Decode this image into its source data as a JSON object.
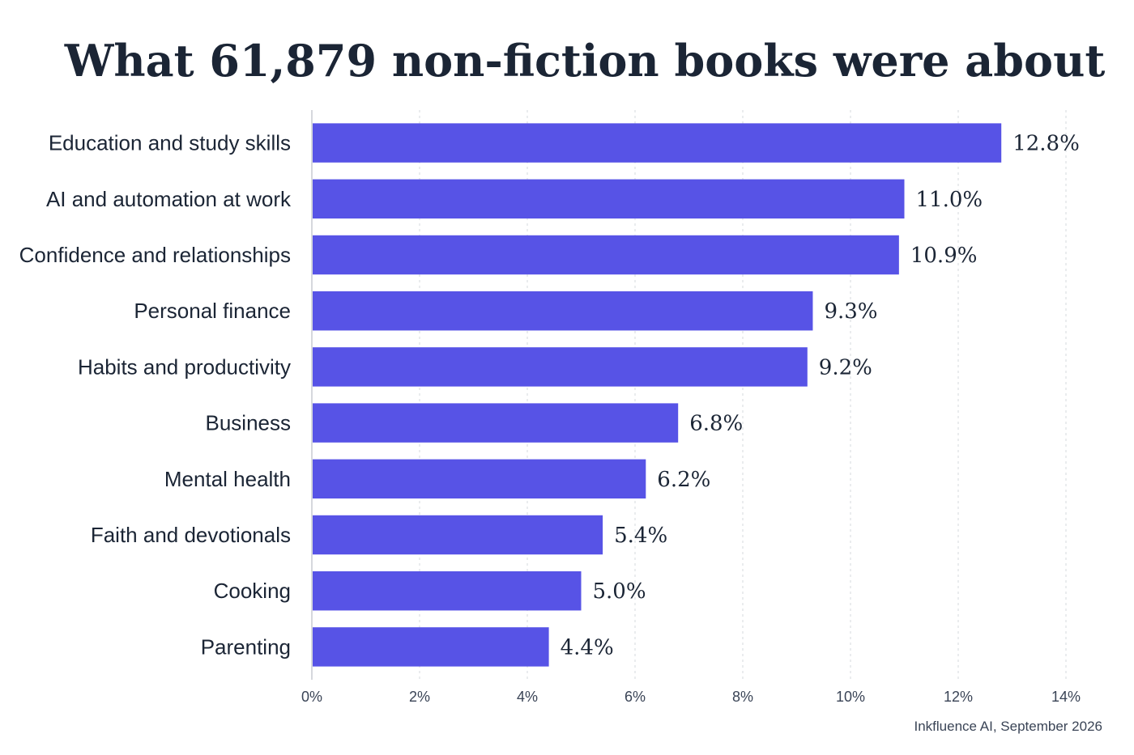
{
  "chart_data": {
    "type": "bar",
    "orientation": "horizontal",
    "title": "What 61,879 non-fiction books were about",
    "source": "Inkfluence AI, September 2026",
    "categories": [
      "Education and study skills",
      "AI and automation at work",
      "Confidence and relationships",
      "Personal finance",
      "Habits and productivity",
      "Business",
      "Mental health",
      "Faith and devotionals",
      "Cooking",
      "Parenting"
    ],
    "values": [
      12.8,
      11.0,
      10.9,
      9.3,
      9.2,
      6.8,
      6.2,
      5.4,
      5.0,
      4.4
    ],
    "value_labels": [
      "12.8%",
      "11.0%",
      "10.9%",
      "9.3%",
      "9.2%",
      "6.8%",
      "6.2%",
      "5.4%",
      "5.0%",
      "4.4%"
    ],
    "xlim": [
      0,
      14
    ],
    "xticks": [
      0,
      2,
      4,
      6,
      8,
      10,
      12,
      14
    ],
    "xtick_labels": [
      "0%",
      "2%",
      "4%",
      "6%",
      "8%",
      "10%",
      "12%",
      "14%"
    ],
    "xlabel": "",
    "ylabel": "",
    "grid": "vertical-dashed",
    "legend": "none",
    "colors": {
      "bar": "#5753e6",
      "text": "#1b2535",
      "grid": "#d6d9de"
    }
  }
}
